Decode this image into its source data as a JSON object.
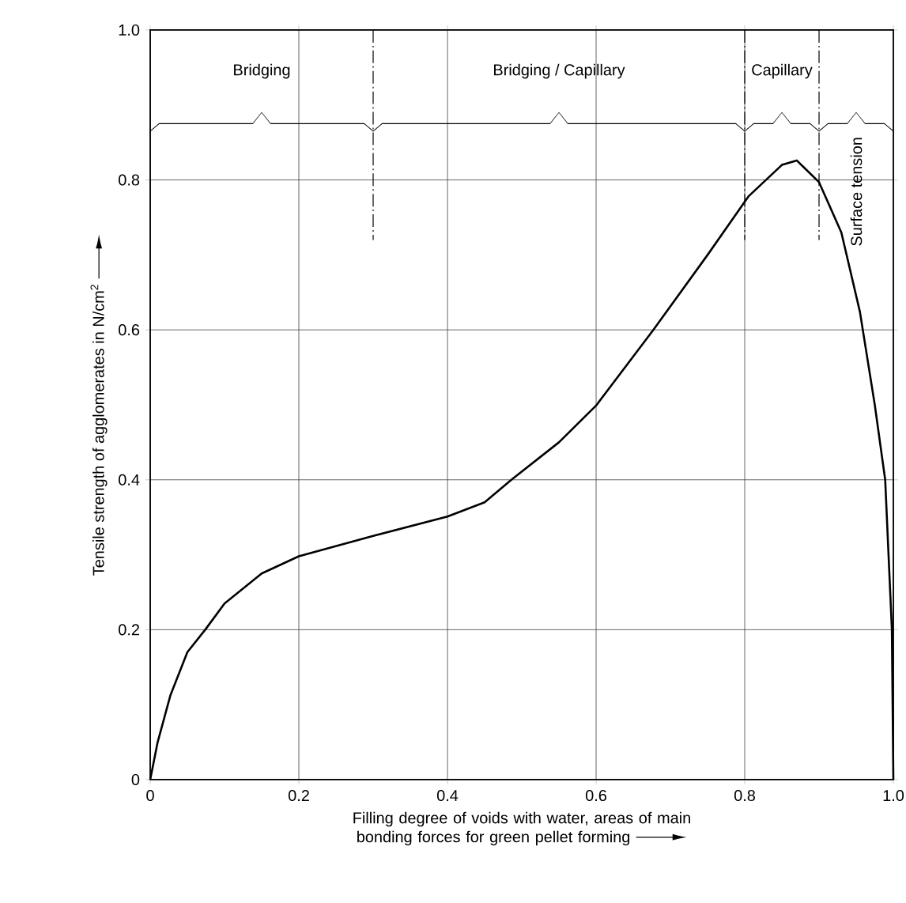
{
  "chart_data": {
    "type": "line",
    "xlabel": "Filling degree of voids with water, areas of main bonding forces for green pellet forming",
    "ylabel": "Tensile strength of agglomerates in N/cm$^{2}$",
    "x": [
      0,
      0.01,
      0.027,
      0.05,
      0.074,
      0.1,
      0.15,
      0.2,
      0.3,
      0.4,
      0.45,
      0.486,
      0.55,
      0.6,
      0.677,
      0.75,
      0.805,
      0.85,
      0.87,
      0.9,
      0.93,
      0.955,
      0.975,
      0.989,
      0.998,
      1.0
    ],
    "series": [
      {
        "color": "#000000",
        "values": [
          0,
          0.05,
          0.112,
          0.17,
          0.2,
          0.235,
          0.275,
          0.298,
          0.325,
          0.351,
          0.37,
          0.4,
          0.45,
          0.499,
          0.6,
          0.7,
          0.778,
          0.82,
          0.826,
          0.797,
          0.73,
          0.624,
          0.5,
          0.4,
          0.2,
          0
        ]
      }
    ],
    "xlim": [
      0,
      1
    ],
    "ylim": [
      0,
      1
    ],
    "xticks": [
      0,
      0.2,
      0.4,
      0.6,
      0.8,
      {
        "value": 1,
        "label": "1.0"
      }
    ],
    "yticks": [
      0,
      0.2,
      0.4,
      0.6,
      0.8,
      {
        "value": 1,
        "label": "1.0"
      }
    ],
    "grid": true,
    "ref_lines": [
      {
        "axis": "x",
        "value": 0.3,
        "line_style": "dashed"
      },
      {
        "axis": "x",
        "value": 0.8,
        "line_style": "dashed"
      },
      {
        "axis": "x",
        "value": 0.9,
        "line_style": "dashed"
      }
    ],
    "annotations": [
      "Bridging",
      "Bridging / Capillary",
      "Capillary",
      "Surface tension"
    ]
  }
}
